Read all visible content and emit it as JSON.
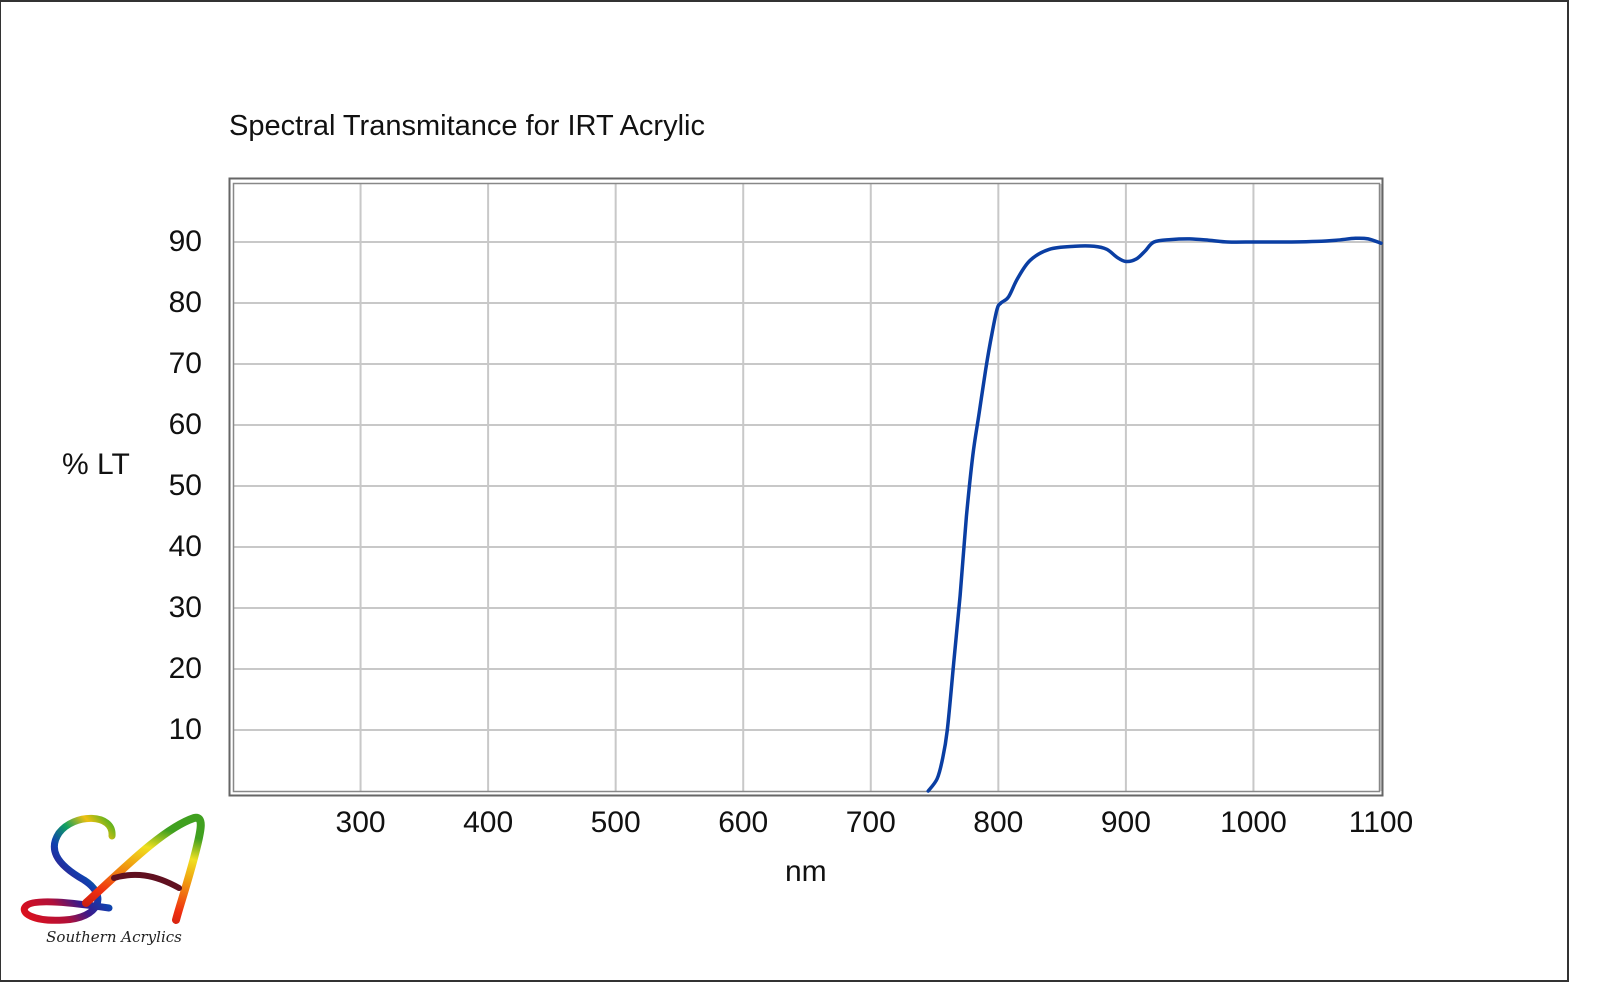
{
  "chart_data": {
    "type": "line",
    "title": "Spectral Transmitance for IRT Acrylic",
    "xlabel": "nm",
    "ylabel": "% LT",
    "xlim": [
      200,
      1100
    ],
    "ylim": [
      0,
      100
    ],
    "x_ticks": [
      300,
      400,
      500,
      600,
      700,
      800,
      900,
      1000,
      1100
    ],
    "y_ticks": [
      10,
      20,
      30,
      40,
      50,
      60,
      70,
      80,
      90
    ],
    "grid": true,
    "legend": null,
    "series": [
      {
        "name": "IRT Acrylic",
        "color": "#0a3ea3",
        "x": [
          745,
          752,
          756,
          760,
          765,
          770,
          775,
          780,
          785,
          790,
          795,
          799,
          802,
          808,
          815,
          825,
          840,
          860,
          875,
          885,
          893,
          900,
          908,
          915,
          922,
          935,
          950,
          965,
          980,
          1000,
          1015,
          1030,
          1050,
          1065,
          1080,
          1090,
          1100
        ],
        "values": [
          0,
          2,
          5,
          10,
          21,
          32,
          45,
          55,
          62,
          69,
          75,
          79,
          80,
          81,
          84,
          87,
          88.8,
          89.3,
          89.3,
          88.8,
          87.5,
          86.8,
          87.2,
          88.5,
          90,
          90.4,
          90.5,
          90.3,
          90.0,
          90.0,
          90.0,
          90.0,
          90.1,
          90.3,
          90.6,
          90.5,
          89.8
        ]
      }
    ]
  },
  "logo": {
    "monogram": "SA",
    "caption": "Southern Acrylics"
  }
}
